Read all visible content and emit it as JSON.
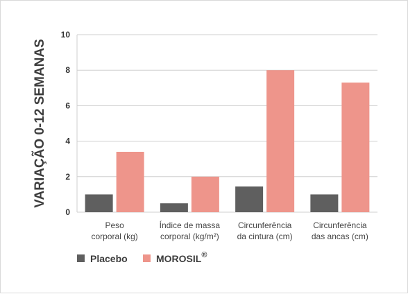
{
  "chart_data": {
    "type": "bar",
    "ylabel": "VARIAÇÃO 0-12 SEMANAS",
    "xlabel": "",
    "ylim": [
      0,
      10
    ],
    "yticks": [
      0,
      2,
      4,
      6,
      8,
      10
    ],
    "grid": true,
    "legend_position": "bottom-left",
    "categories": [
      [
        "Peso",
        "corporal (kg)"
      ],
      [
        "Índice de massa",
        "corporal (kg/m²)"
      ],
      [
        "Circunferência",
        "da cintura (cm)"
      ],
      [
        "Circunferência",
        "das ancas (cm)"
      ]
    ],
    "series": [
      {
        "name": "Placebo",
        "color": "#5f5f5f",
        "values": [
          1.0,
          0.5,
          1.45,
          1.0
        ]
      },
      {
        "name": "MOROSIL",
        "name_sup": "®",
        "color": "#ee958b",
        "values": [
          3.4,
          2.0,
          8.0,
          7.3
        ]
      }
    ]
  }
}
